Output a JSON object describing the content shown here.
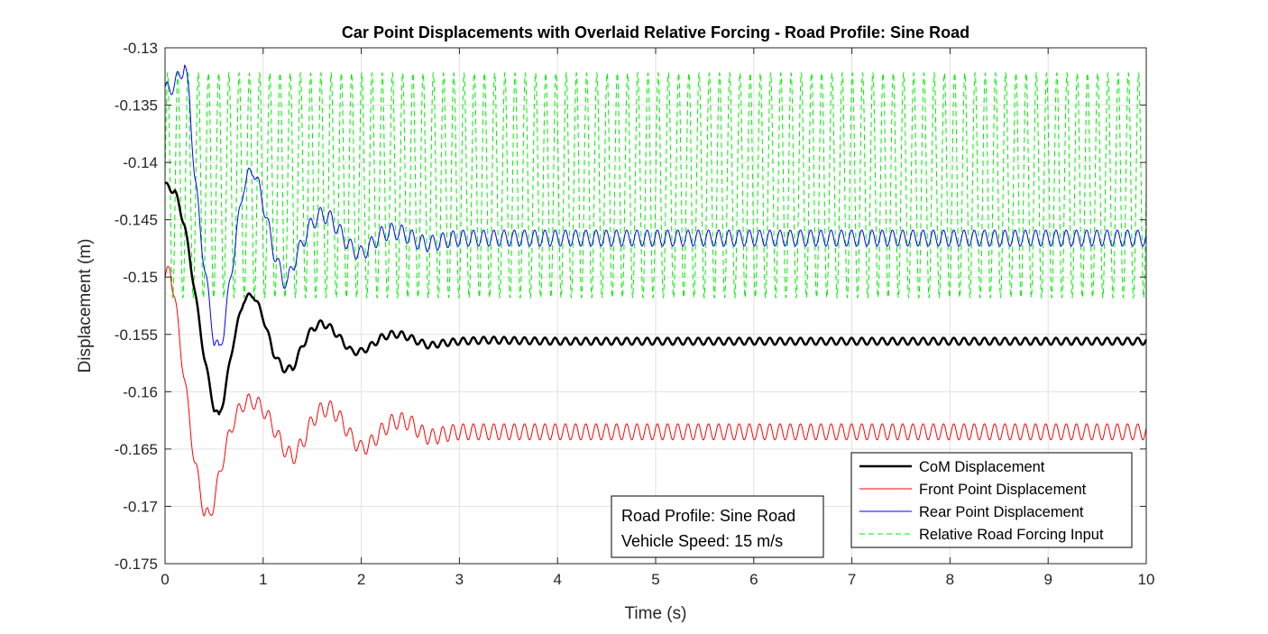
{
  "chart_data": {
    "type": "line",
    "title": "Car Point Displacements with Overlaid Relative Forcing - Road Profile: Sine Road",
    "xlabel": "Time (s)",
    "ylabel": "Displacement (m)",
    "xlim": [
      0,
      10
    ],
    "ylim": [
      -0.175,
      -0.13
    ],
    "xticks": [
      0,
      1,
      2,
      3,
      4,
      5,
      6,
      7,
      8,
      9,
      10
    ],
    "xtick_labels": [
      "0",
      "1",
      "2",
      "3",
      "4",
      "5",
      "6",
      "7",
      "8",
      "9",
      "10"
    ],
    "yticks": [
      -0.175,
      -0.17,
      -0.165,
      -0.16,
      -0.155,
      -0.15,
      -0.145,
      -0.14,
      -0.135,
      -0.13
    ],
    "ytick_labels": [
      "-0.175",
      "-0.17",
      "-0.165",
      "-0.16",
      "-0.155",
      "-0.15",
      "-0.145",
      "-0.14",
      "-0.135",
      "-0.13"
    ],
    "grid": true,
    "legend_position": "bottom-right",
    "series": [
      {
        "name": "CoM Displacement",
        "color": "#000000",
        "style": "solid-thick",
        "x": [
          0,
          0.1,
          0.2,
          0.3,
          0.4,
          0.5,
          0.55,
          0.6,
          0.7,
          0.8,
          0.9,
          1.0,
          1.1,
          1.2,
          1.3,
          1.4,
          1.5,
          1.6,
          1.7,
          1.8,
          1.9,
          2.0,
          2.1,
          2.2,
          2.3,
          2.4,
          2.5,
          2.6,
          2.7,
          2.8,
          2.9,
          3.0,
          3.3,
          4,
          5,
          6,
          7,
          8,
          9,
          10
        ],
        "y": [
          -0.142,
          -0.1425,
          -0.1455,
          -0.151,
          -0.157,
          -0.1615,
          -0.1622,
          -0.1605,
          -0.1555,
          -0.152,
          -0.1515,
          -0.1535,
          -0.1565,
          -0.158,
          -0.158,
          -0.156,
          -0.1545,
          -0.154,
          -0.1545,
          -0.1555,
          -0.1565,
          -0.1565,
          -0.156,
          -0.1553,
          -0.155,
          -0.155,
          -0.1553,
          -0.1557,
          -0.156,
          -0.1558,
          -0.1557,
          -0.1556,
          -0.1555,
          -0.1556,
          -0.1556,
          -0.1556,
          -0.1556,
          -0.1556,
          -0.1556,
          -0.1556
        ],
        "ripple_amplitude": 0.0003
      },
      {
        "name": "Front Point Displacement",
        "color": "#ff0000",
        "style": "solid-thin",
        "x": [
          0,
          0.05,
          0.1,
          0.2,
          0.3,
          0.4,
          0.45,
          0.5,
          0.6,
          0.7,
          0.8,
          0.9,
          1.0,
          1.1,
          1.2,
          1.3,
          1.4,
          1.5,
          1.6,
          1.7,
          1.8,
          1.9,
          2.0,
          2.1,
          2.2,
          2.3,
          2.4,
          2.5,
          2.6,
          2.7,
          2.8,
          2.9,
          3.0,
          3.5,
          4,
          5,
          6,
          7,
          8,
          9,
          10
        ],
        "y": [
          -0.1505,
          -0.149,
          -0.152,
          -0.159,
          -0.166,
          -0.1705,
          -0.171,
          -0.1695,
          -0.1655,
          -0.1625,
          -0.161,
          -0.1608,
          -0.1615,
          -0.163,
          -0.1648,
          -0.1658,
          -0.1645,
          -0.1625,
          -0.1615,
          -0.1615,
          -0.1625,
          -0.164,
          -0.165,
          -0.1645,
          -0.1635,
          -0.1627,
          -0.1625,
          -0.1627,
          -0.1635,
          -0.164,
          -0.1638,
          -0.1636,
          -0.1635,
          -0.1635,
          -0.1635,
          -0.1635,
          -0.1635,
          -0.1635,
          -0.1635,
          -0.1635,
          -0.1635
        ],
        "ripple_amplitude": 0.0007
      },
      {
        "name": "Rear Point Displacement",
        "color": "#0000ff",
        "style": "solid-thin",
        "x": [
          0,
          0.1,
          0.2,
          0.25,
          0.3,
          0.4,
          0.5,
          0.55,
          0.6,
          0.7,
          0.8,
          0.9,
          1.0,
          1.1,
          1.2,
          1.25,
          1.3,
          1.4,
          1.5,
          1.6,
          1.7,
          1.8,
          1.9,
          2.0,
          2.1,
          2.2,
          2.3,
          2.4,
          2.5,
          2.6,
          2.7,
          2.8,
          2.9,
          3.0,
          3.5,
          4,
          5,
          6,
          7,
          8,
          9,
          10
        ],
        "y": [
          -0.1338,
          -0.1332,
          -0.1315,
          -0.1345,
          -0.141,
          -0.149,
          -0.1555,
          -0.1565,
          -0.1545,
          -0.148,
          -0.142,
          -0.1405,
          -0.1435,
          -0.1475,
          -0.1502,
          -0.1505,
          -0.149,
          -0.147,
          -0.1452,
          -0.1445,
          -0.145,
          -0.1463,
          -0.1475,
          -0.148,
          -0.1472,
          -0.1463,
          -0.146,
          -0.1461,
          -0.1465,
          -0.147,
          -0.1471,
          -0.1469,
          -0.1467,
          -0.1466,
          -0.1466,
          -0.1466,
          -0.1466,
          -0.1466,
          -0.1466,
          -0.1466,
          -0.1466,
          -0.1466
        ],
        "ripple_amplitude": 0.0007
      },
      {
        "name": "Relative Road Forcing Input",
        "color": "#00ee00",
        "style": "dashed",
        "center": -0.142,
        "amplitude": 0.0098,
        "frequency_hz": 9.6,
        "x_start": 0,
        "x_end": 10
      }
    ]
  },
  "legend": {
    "entries": [
      "CoM Displacement",
      "Front Point Displacement",
      "Rear Point Displacement",
      "Relative Road Forcing Input"
    ]
  },
  "annotation": {
    "line1": "Road Profile: Sine Road",
    "line2": "Vehicle Speed: 15 m/s"
  }
}
